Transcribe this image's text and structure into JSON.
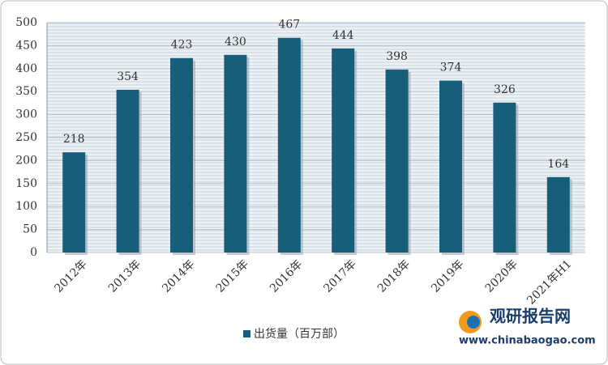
{
  "chart_data": {
    "type": "bar",
    "categories": [
      "2012年",
      "2013年",
      "2014年",
      "2015年",
      "2016年",
      "2017年",
      "2018年",
      "2019年",
      "2020年",
      "2021年H1"
    ],
    "series": [
      {
        "name": "出货量（百万部）",
        "color": "#175e7b",
        "values": [
          218,
          354,
          423,
          430,
          467,
          444,
          398,
          374,
          326,
          164
        ]
      }
    ],
    "ylim": [
      0,
      500
    ],
    "yticks": [
      0,
      50,
      100,
      150,
      200,
      250,
      300,
      350,
      400,
      450,
      500
    ],
    "grid": true,
    "legend": "bottom"
  },
  "watermark": {
    "name": "观研报告网",
    "url": "www.chinabaogao.com"
  }
}
